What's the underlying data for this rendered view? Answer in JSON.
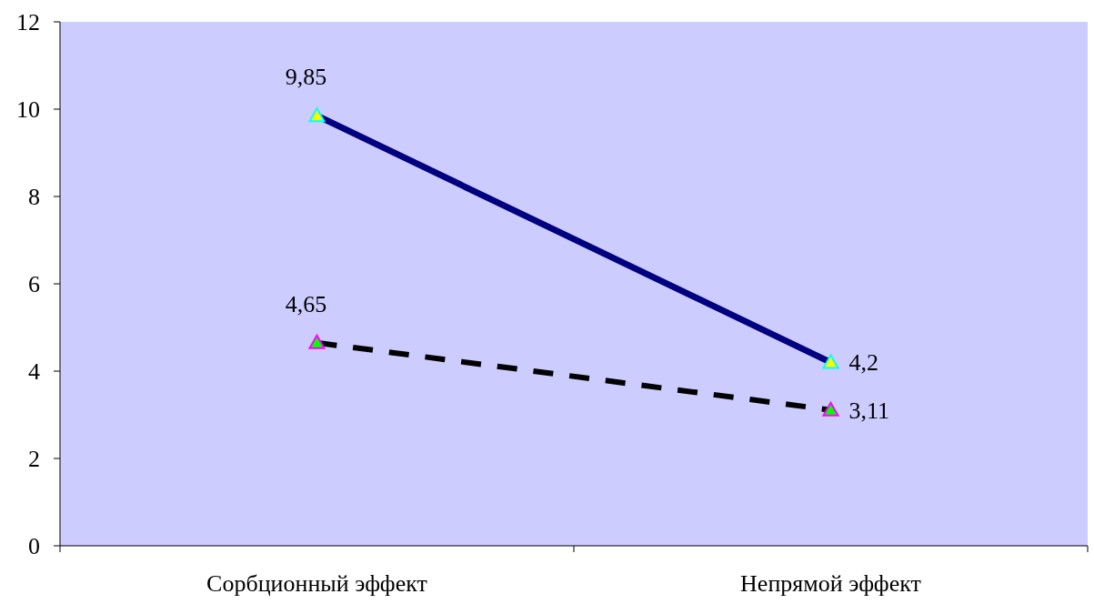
{
  "chart_data": {
    "type": "line",
    "categories": [
      "Сорбционный эффект",
      "Непрямой эффект"
    ],
    "series": [
      {
        "color": "#000080",
        "values": [
          9.85,
          4.2
        ],
        "value_labels": [
          "9,85",
          "4,2"
        ],
        "line_style": "solid"
      },
      {
        "color": "#000000",
        "values": [
          4.65,
          3.11
        ],
        "value_labels": [
          "4,65",
          "3,11"
        ],
        "line_style": "dashed"
      }
    ],
    "ylim": [
      0,
      12
    ],
    "yticks": [
      0,
      2,
      4,
      6,
      8,
      10,
      12
    ],
    "marker": "triangle",
    "grid": false
  }
}
